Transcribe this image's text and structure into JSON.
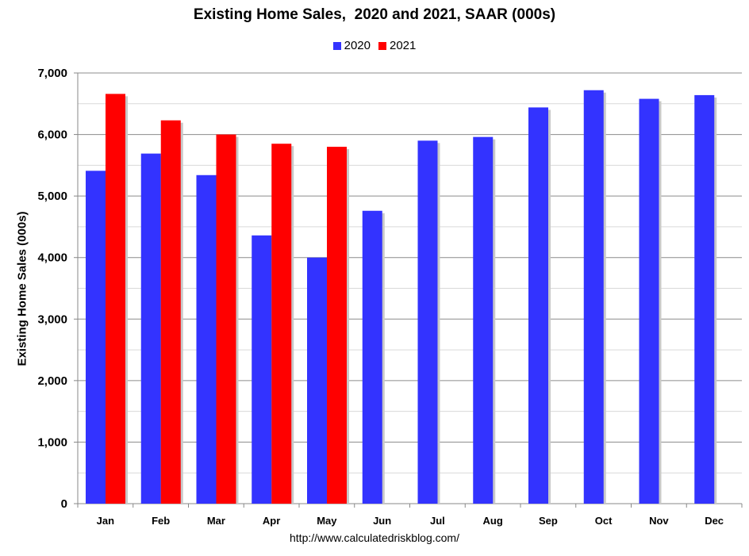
{
  "chart_data": {
    "type": "bar",
    "title": "Existing Home Sales,  2020 and 2021, SAAR (000s)",
    "xlabel": "",
    "ylabel": "Existing Home Sales (000s)",
    "categories": [
      "Jan",
      "Feb",
      "Mar",
      "Apr",
      "May",
      "Jun",
      "Jul",
      "Aug",
      "Sep",
      "Oct",
      "Nov",
      "Dec"
    ],
    "series": [
      {
        "name": "2020",
        "color": "#3333ff",
        "values": [
          5410,
          5690,
          5340,
          4360,
          4000,
          4760,
          5900,
          5960,
          6440,
          6720,
          6580,
          6640
        ]
      },
      {
        "name": "2021",
        "color": "#ff0000",
        "values": [
          6660,
          6230,
          6000,
          5850,
          5800,
          null,
          null,
          null,
          null,
          null,
          null,
          null
        ]
      }
    ],
    "ylim": [
      0,
      7000
    ],
    "yticks": [
      0,
      1000,
      2000,
      3000,
      4000,
      5000,
      6000,
      7000
    ],
    "ytick_labels": [
      "0",
      "1,000",
      "2,000",
      "3,000",
      "4,000",
      "5,000",
      "6,000",
      "7,000"
    ],
    "grid": true,
    "legend_position": "top-center"
  },
  "source_url": "http://www.calculatedriskblog.com/"
}
